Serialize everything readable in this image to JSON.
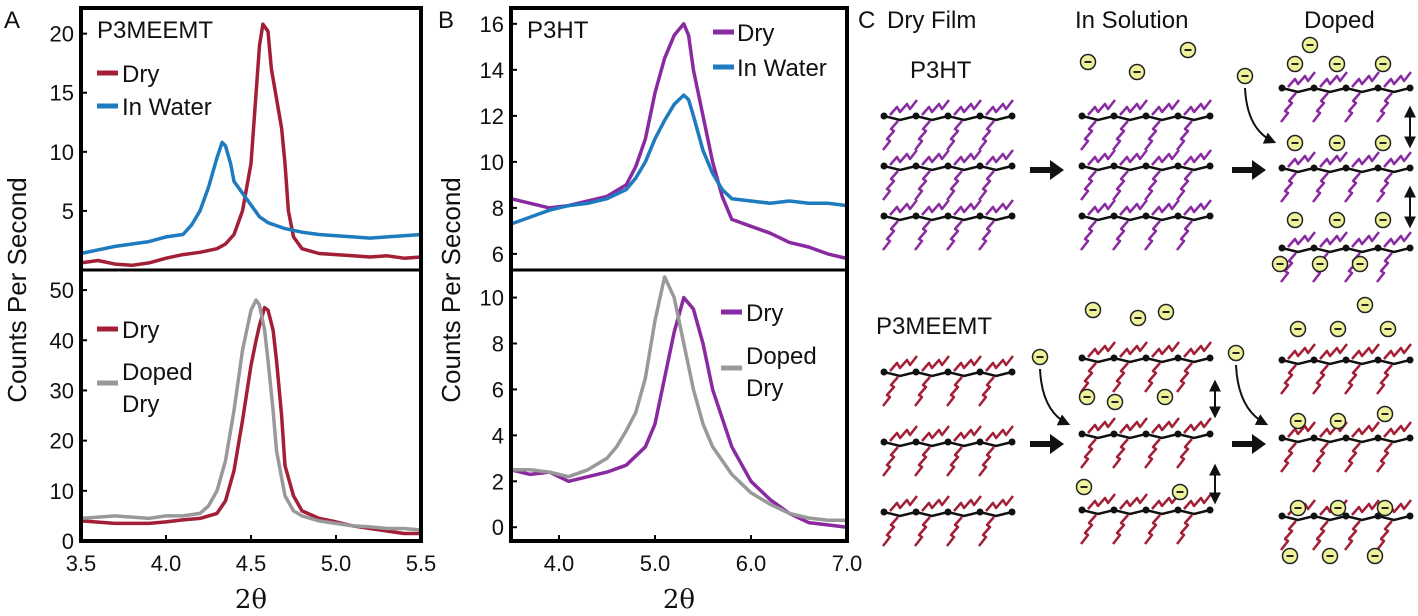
{
  "chart_data": [
    {
      "type": "line",
      "panel": "A",
      "title": "P3MEEMT",
      "xlim": [
        3.5,
        5.5
      ],
      "ylim": [
        0,
        22
      ],
      "yticks": [
        5,
        10,
        15,
        20
      ],
      "ylabel": "",
      "series": [
        {
          "name": "Dry",
          "color": "#a21f35",
          "x": [
            3.5,
            3.6,
            3.7,
            3.8,
            3.9,
            4.0,
            4.1,
            4.2,
            4.3,
            4.35,
            4.4,
            4.45,
            4.5,
            4.52,
            4.55,
            4.57,
            4.6,
            4.62,
            4.65,
            4.68,
            4.7,
            4.72,
            4.75,
            4.8,
            4.9,
            5.0,
            5.1,
            5.2,
            5.3,
            5.4,
            5.5
          ],
          "y": [
            0.6,
            0.8,
            0.5,
            0.4,
            0.6,
            1.0,
            1.3,
            1.5,
            1.8,
            2.2,
            3.0,
            5.0,
            9.0,
            13.0,
            19.0,
            20.8,
            20.2,
            17.0,
            14.5,
            12.0,
            9.0,
            5.0,
            2.8,
            1.8,
            1.4,
            1.3,
            1.2,
            1.1,
            1.2,
            1.0,
            1.1
          ]
        },
        {
          "name": "In Water",
          "color": "#1f7bbf",
          "x": [
            3.5,
            3.6,
            3.7,
            3.8,
            3.9,
            4.0,
            4.1,
            4.15,
            4.2,
            4.25,
            4.3,
            4.33,
            4.35,
            4.38,
            4.4,
            4.45,
            4.5,
            4.55,
            4.6,
            4.7,
            4.8,
            4.9,
            5.0,
            5.1,
            5.2,
            5.3,
            5.4,
            5.5
          ],
          "y": [
            1.4,
            1.7,
            2.0,
            2.2,
            2.4,
            2.8,
            3.0,
            3.8,
            5.0,
            7.0,
            9.5,
            10.8,
            10.5,
            9.0,
            7.5,
            6.5,
            5.5,
            4.5,
            4.0,
            3.5,
            3.2,
            3.0,
            2.9,
            2.8,
            2.7,
            2.8,
            2.9,
            3.0
          ]
        }
      ]
    },
    {
      "type": "line",
      "panel": "A",
      "xlim": [
        3.5,
        5.5
      ],
      "ylim": [
        0,
        54
      ],
      "xticks": [
        3.5,
        4.0,
        4.5,
        5.0,
        5.5
      ],
      "yticks": [
        0,
        10,
        20,
        30,
        40,
        50
      ],
      "xlabel": "2θ",
      "ylabel": "Counts Per Second",
      "series": [
        {
          "name": "Dry",
          "color": "#a21f35",
          "x": [
            3.5,
            3.7,
            3.9,
            4.0,
            4.1,
            4.2,
            4.3,
            4.35,
            4.4,
            4.45,
            4.5,
            4.53,
            4.55,
            4.58,
            4.6,
            4.63,
            4.65,
            4.68,
            4.7,
            4.75,
            4.8,
            4.9,
            5.0,
            5.1,
            5.2,
            5.3,
            5.4,
            5.5
          ],
          "y": [
            4.0,
            3.5,
            3.5,
            3.8,
            4.2,
            4.5,
            5.5,
            8.0,
            14.0,
            24.0,
            35.0,
            40.0,
            43.0,
            46.5,
            46.0,
            42.0,
            36.0,
            25.0,
            15.0,
            9.0,
            6.0,
            4.5,
            3.8,
            3.0,
            2.5,
            2.0,
            1.5,
            1.5
          ]
        },
        {
          "name": "Doped Dry",
          "color": "#999999",
          "x": [
            3.5,
            3.7,
            3.9,
            4.0,
            4.1,
            4.2,
            4.25,
            4.3,
            4.35,
            4.4,
            4.45,
            4.5,
            4.53,
            4.55,
            4.58,
            4.6,
            4.63,
            4.65,
            4.7,
            4.75,
            4.8,
            4.9,
            5.0,
            5.1,
            5.2,
            5.3,
            5.4,
            5.5
          ],
          "y": [
            4.5,
            5.0,
            4.5,
            5.0,
            5.0,
            5.5,
            7.0,
            10.0,
            16.0,
            26.0,
            38.0,
            46.0,
            48.0,
            47.0,
            42.0,
            36.0,
            26.0,
            18.0,
            9.0,
            6.0,
            5.0,
            4.0,
            3.5,
            3.0,
            2.8,
            2.5,
            2.5,
            2.2
          ]
        }
      ]
    },
    {
      "type": "line",
      "panel": "B",
      "title": "P3HT",
      "xlim": [
        3.5,
        7.0
      ],
      "ylim": [
        5.3,
        16.6
      ],
      "yticks": [
        6,
        8,
        10,
        12,
        14,
        16
      ],
      "ylabel": "",
      "series": [
        {
          "name": "Dry",
          "color": "#8a2aa0",
          "x": [
            3.5,
            3.7,
            3.9,
            4.1,
            4.3,
            4.5,
            4.7,
            4.8,
            4.9,
            5.0,
            5.1,
            5.2,
            5.3,
            5.35,
            5.4,
            5.5,
            5.6,
            5.7,
            5.8,
            6.0,
            6.2,
            6.4,
            6.6,
            6.8,
            7.0
          ],
          "y": [
            8.4,
            8.2,
            8.0,
            8.1,
            8.3,
            8.5,
            9.0,
            9.8,
            11.0,
            13.0,
            14.5,
            15.5,
            16.0,
            15.5,
            14.0,
            12.0,
            10.0,
            8.5,
            7.5,
            7.2,
            6.9,
            6.5,
            6.3,
            6.0,
            5.8
          ]
        },
        {
          "name": "In Water",
          "color": "#1f7bbf",
          "x": [
            3.5,
            3.7,
            3.9,
            4.1,
            4.3,
            4.5,
            4.7,
            4.8,
            4.9,
            5.0,
            5.1,
            5.2,
            5.3,
            5.35,
            5.4,
            5.5,
            5.6,
            5.7,
            5.8,
            6.0,
            6.2,
            6.4,
            6.6,
            6.8,
            7.0
          ],
          "y": [
            7.3,
            7.6,
            7.9,
            8.1,
            8.2,
            8.4,
            8.8,
            9.3,
            10.0,
            11.0,
            11.8,
            12.5,
            12.9,
            12.7,
            12.0,
            10.5,
            9.5,
            8.8,
            8.4,
            8.3,
            8.2,
            8.3,
            8.2,
            8.2,
            8.1
          ]
        }
      ]
    },
    {
      "type": "line",
      "panel": "B",
      "xlim": [
        3.5,
        7.0
      ],
      "ylim": [
        -0.6,
        11.2
      ],
      "xticks": [
        4.0,
        5.0,
        6.0,
        7.0
      ],
      "yticks": [
        0,
        2,
        4,
        6,
        8,
        10
      ],
      "xlabel": "2θ",
      "ylabel": "Counts Per Second",
      "series": [
        {
          "name": "Dry",
          "color": "#8a2aa0",
          "x": [
            3.5,
            3.7,
            3.9,
            4.1,
            4.3,
            4.5,
            4.7,
            4.9,
            5.0,
            5.1,
            5.2,
            5.3,
            5.4,
            5.5,
            5.6,
            5.8,
            6.0,
            6.2,
            6.4,
            6.6,
            6.8,
            7.0
          ],
          "y": [
            2.5,
            2.3,
            2.4,
            2.0,
            2.2,
            2.4,
            2.7,
            3.5,
            4.5,
            6.5,
            8.5,
            10.0,
            9.5,
            8.0,
            6.0,
            3.5,
            2.0,
            1.2,
            0.6,
            0.2,
            0.1,
            0.0
          ]
        },
        {
          "name": "Doped Dry",
          "color": "#999999",
          "x": [
            3.5,
            3.7,
            3.9,
            4.1,
            4.3,
            4.5,
            4.6,
            4.7,
            4.8,
            4.9,
            5.0,
            5.1,
            5.2,
            5.3,
            5.4,
            5.5,
            5.6,
            5.8,
            6.0,
            6.2,
            6.4,
            6.6,
            6.8,
            7.0
          ],
          "y": [
            2.5,
            2.5,
            2.4,
            2.2,
            2.5,
            3.0,
            3.5,
            4.2,
            5.0,
            6.5,
            9.0,
            10.9,
            10.0,
            8.0,
            6.0,
            4.5,
            3.5,
            2.3,
            1.5,
            1.0,
            0.6,
            0.4,
            0.3,
            0.3
          ]
        }
      ]
    }
  ],
  "labels": {
    "panel_a": "A",
    "panel_b": "B",
    "panel_c": "C",
    "xlabel_a": "2θ",
    "xlabel_b": "2θ",
    "ylabel_a": "Counts Per Second",
    "ylabel_b": "Counts Per Second"
  },
  "diagram": {
    "col_dry_film": "Dry Film",
    "col_in_solution": "In Solution",
    "col_doped": "Doped",
    "row_p3ht": "P3HT",
    "row_p3meemt": "P3MEEMT",
    "ion_symbol": "⊖",
    "colors": {
      "p3ht_side": "#8a2aa0",
      "p3meemt_side": "#a21f35",
      "backbone": "#111111",
      "ion_fill": "#eef29a"
    }
  }
}
